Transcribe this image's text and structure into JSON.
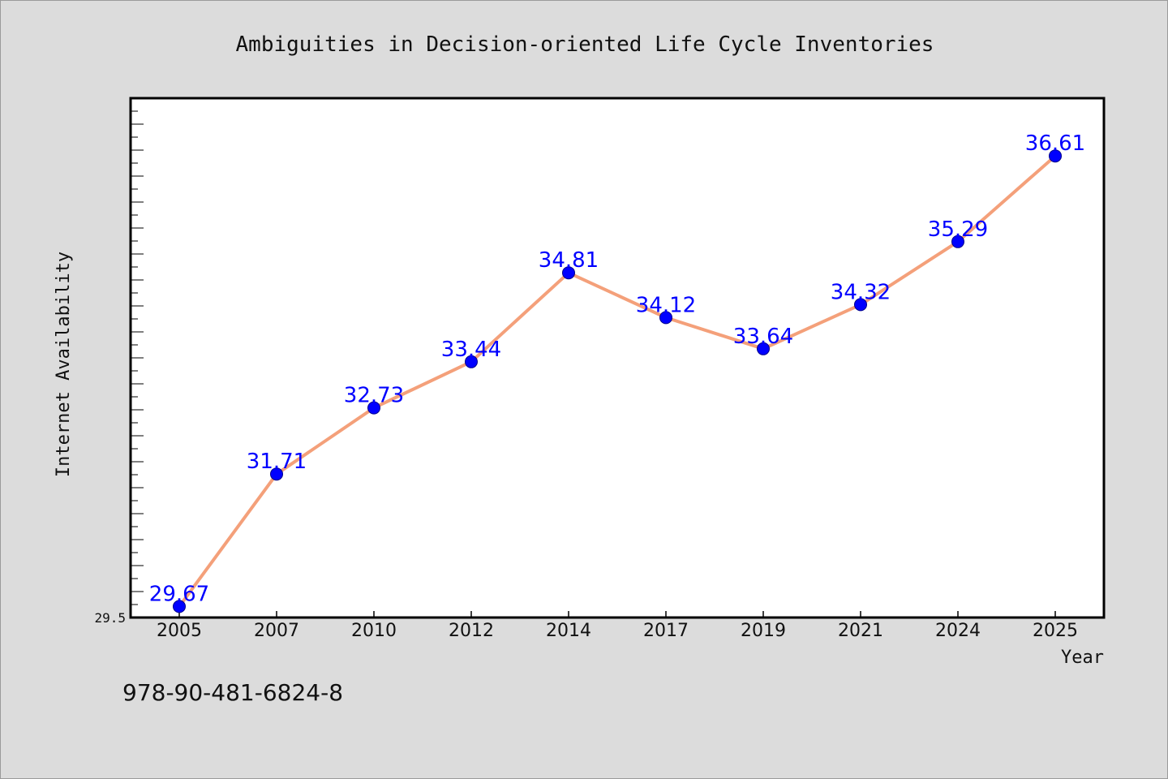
{
  "chart_data": {
    "type": "line",
    "title": "Ambiguities in Decision-oriented Life Cycle Inventories",
    "xlabel": "Year",
    "ylabel": "Internet Availability",
    "categories": [
      "2005",
      "2007",
      "2010",
      "2012",
      "2014",
      "2017",
      "2019",
      "2021",
      "2024",
      "2025"
    ],
    "series": [
      {
        "values": [
          29.67,
          31.71,
          32.73,
          33.44,
          34.81,
          34.12,
          33.64,
          34.32,
          35.29,
          36.61
        ]
      }
    ],
    "data_labels": [
      "29.67",
      "31.71",
      "32.73",
      "33.44",
      "34.81",
      "34.12",
      "33.64",
      "34.32",
      "35.29",
      "36.61"
    ],
    "y_min_label": "29.5",
    "ylim": [
      29.5,
      37.5
    ],
    "grid": false,
    "legend": "none"
  },
  "footnote": "978-90-481-6824-8",
  "colors": {
    "background": "#dcdcdc",
    "plot_area": "#ffffff",
    "line": "#f4a07a",
    "marker": "#0000ff",
    "data_label": "#0000ff",
    "axis": "#000000"
  }
}
